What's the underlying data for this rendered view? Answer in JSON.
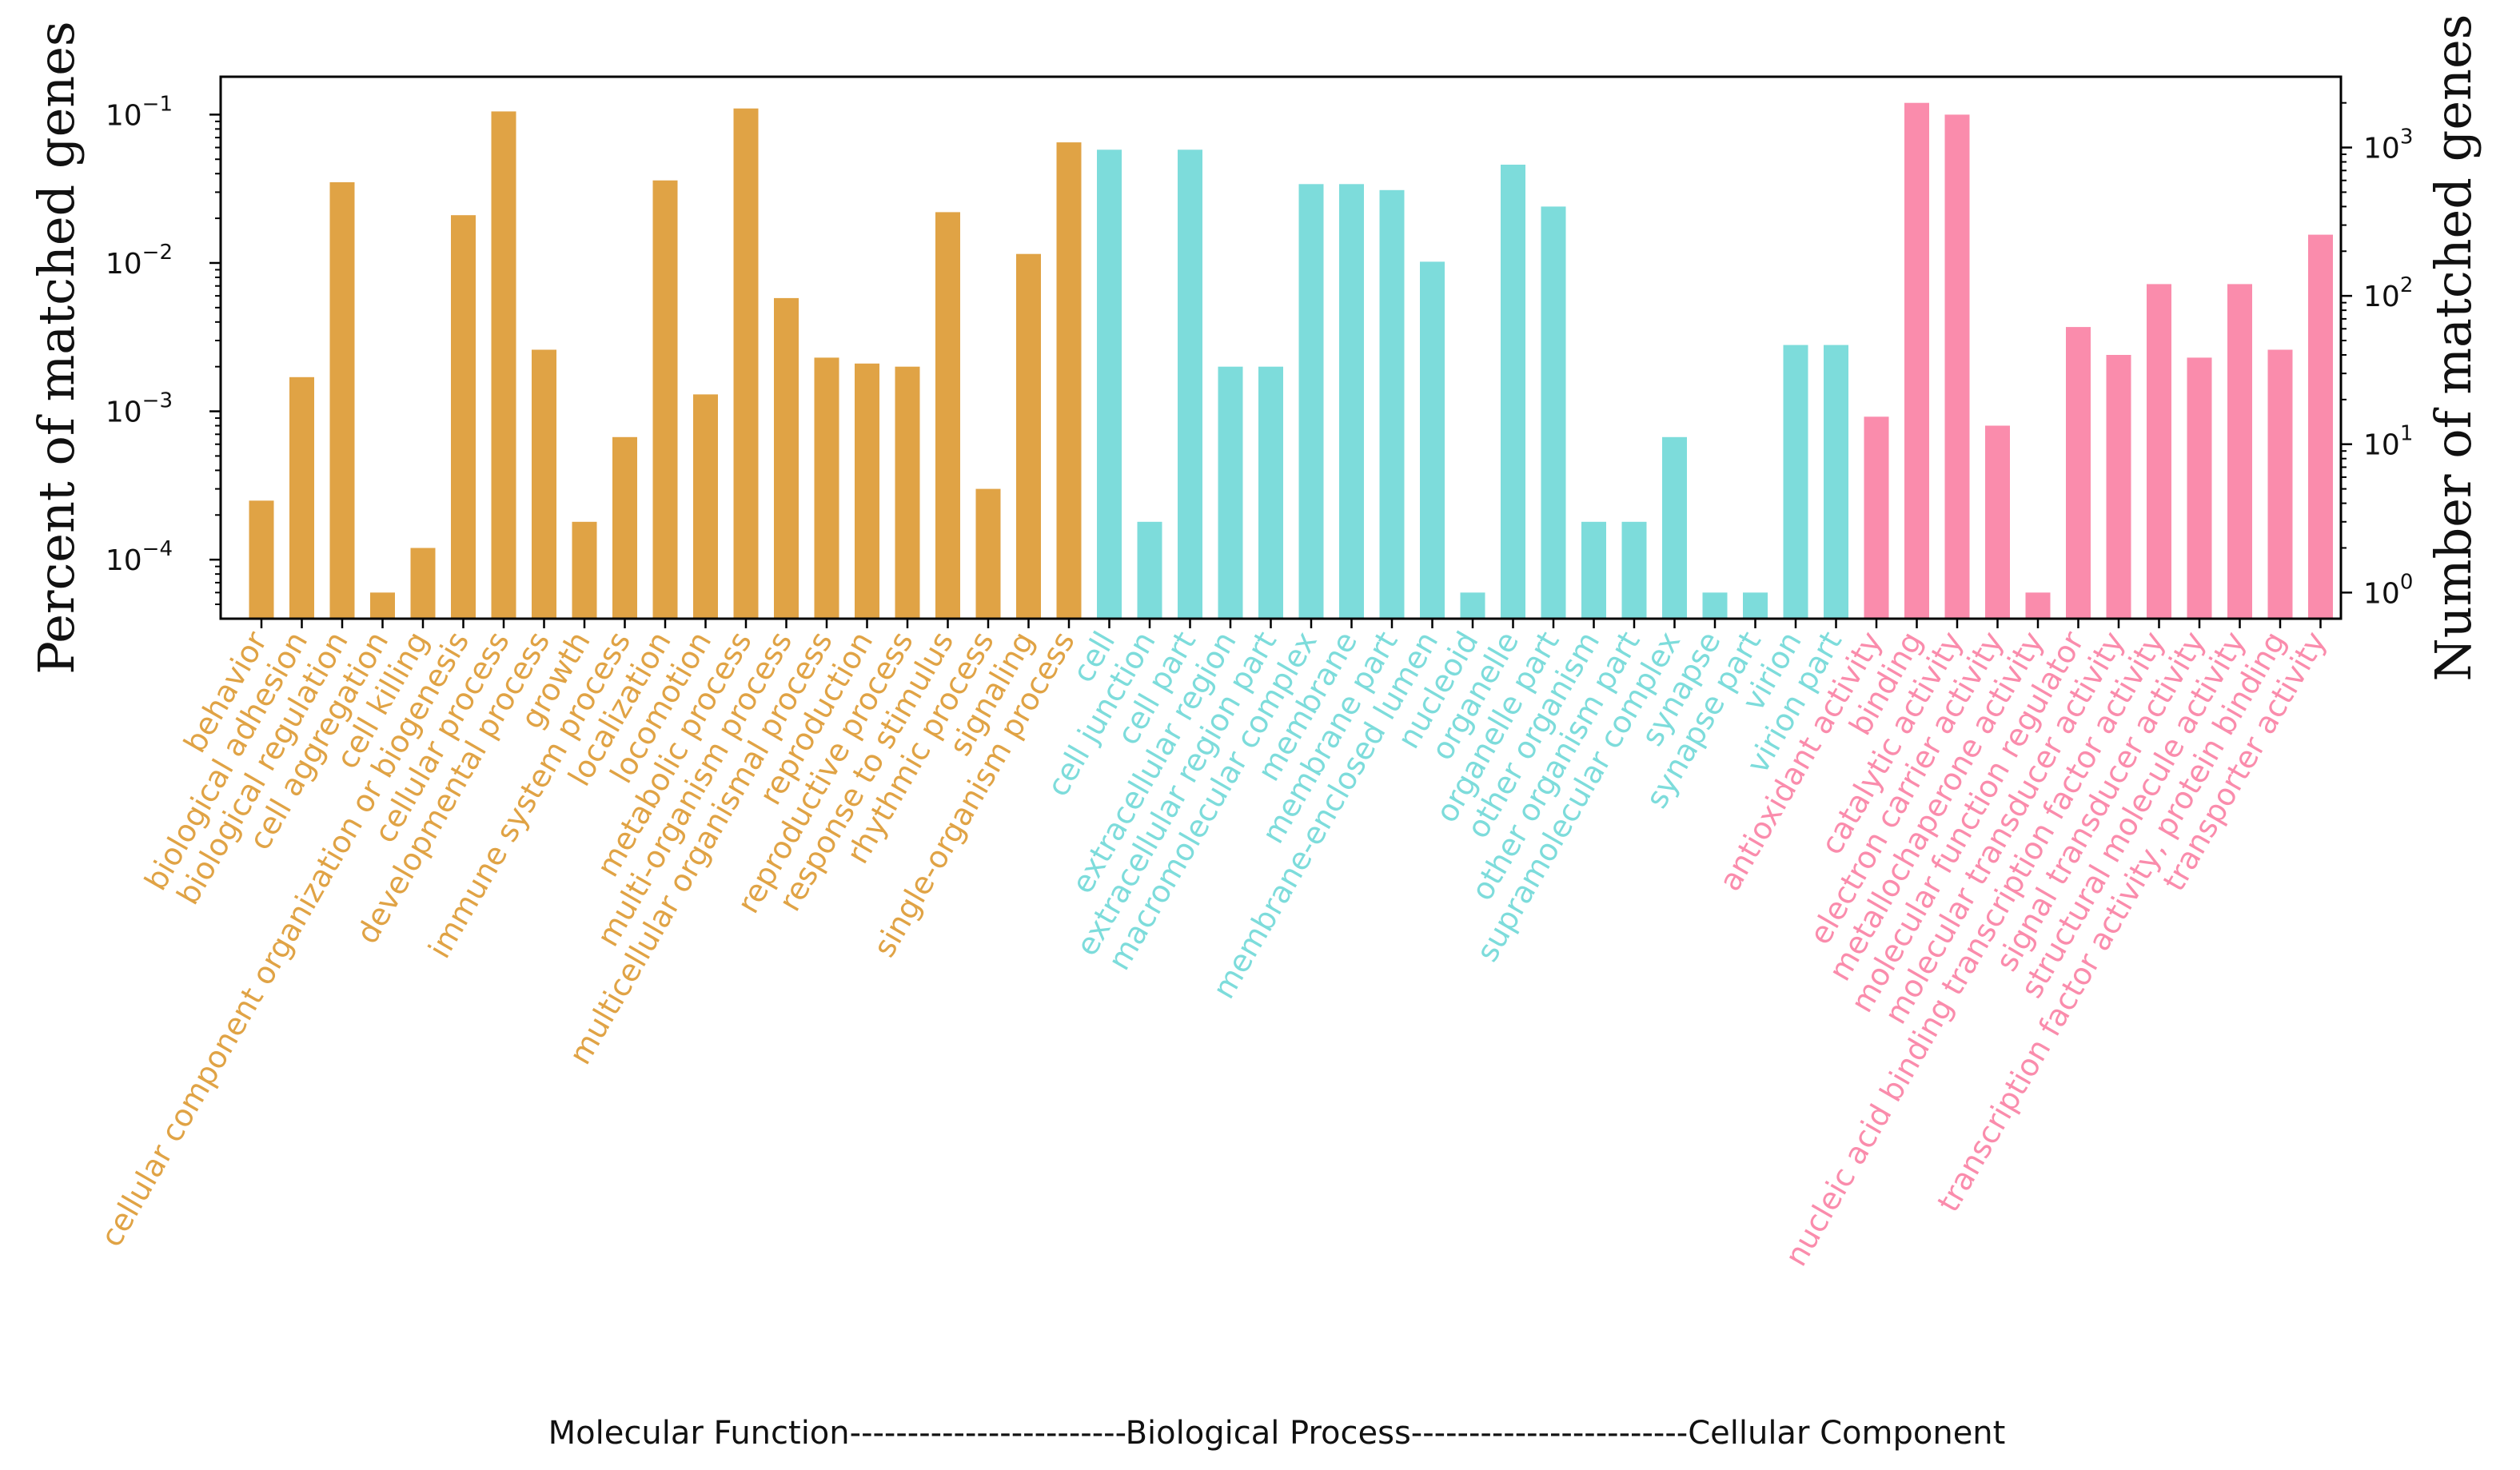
{
  "chart_data": {
    "type": "bar",
    "title": "",
    "ylabel_left": "Percent of matched genes",
    "ylabel_right": "Number of matched genes",
    "yscale": "log",
    "ylim_left": [
      4e-05,
      0.18
    ],
    "yticks_left": [
      {
        "value": 0.0001,
        "label": "10",
        "exp": "−4"
      },
      {
        "value": 0.001,
        "label": "10",
        "exp": "−3"
      },
      {
        "value": 0.01,
        "label": "10",
        "exp": "−2"
      },
      {
        "value": 0.1,
        "label": "10",
        "exp": "−1"
      }
    ],
    "yticks_right": [
      {
        "value": 1,
        "label": "10",
        "exp": "0"
      },
      {
        "value": 10,
        "label": "10",
        "exp": "1"
      },
      {
        "value": 100,
        "label": "10",
        "exp": "2"
      },
      {
        "value": 1000,
        "label": "10",
        "exp": "3"
      }
    ],
    "bottom_label": "Molecular Function------------------------Biological Process------------------------Cellular Component",
    "groups": [
      {
        "color": "#e0a345",
        "categories": [
          "behavior",
          "biological adhesion",
          "biological regulation",
          "cell aggregation",
          "cell killing",
          "cellular component organization or biogenesis",
          "cellular process",
          "developmental process",
          "growth",
          "immune system process",
          "localization",
          "locomotion",
          "metabolic process",
          "multi-organism process",
          "multicellular organismal process",
          "reproduction",
          "reproductive process",
          "response to stimulus",
          "rhythmic process",
          "signaling",
          "single-organism process"
        ],
        "values": [
          0.00025,
          0.0017,
          0.035,
          6e-05,
          0.00012,
          0.021,
          0.105,
          0.0026,
          0.00018,
          0.00067,
          0.036,
          0.0013,
          0.11,
          0.0058,
          0.0023,
          0.0021,
          0.002,
          0.022,
          0.0003,
          0.0115,
          0.065
        ]
      },
      {
        "color": "#7ddcdb",
        "categories": [
          "cell",
          "cell junction",
          "cell part",
          "extracellular region",
          "extracellular region part",
          "macromolecular complex",
          "membrane",
          "membrane part",
          "membrane-enclosed lumen",
          "nucleoid",
          "organelle",
          "organelle part",
          "other organism",
          "other organism part",
          "supramolecular complex",
          "synapse",
          "synapse part",
          "virion",
          "virion part"
        ],
        "values": [
          0.058,
          0.00018,
          0.058,
          0.002,
          0.002,
          0.034,
          0.034,
          0.031,
          0.0102,
          6e-05,
          0.046,
          0.024,
          0.00018,
          0.00018,
          0.00067,
          6e-05,
          6e-05,
          0.0028,
          0.0028
        ]
      },
      {
        "color": "#fa8cac",
        "categories": [
          "antioxidant activity",
          "binding",
          "catalytic activity",
          "electron carrier activity",
          "metallochaperone activity",
          "molecular function regulator",
          "molecular transducer activity",
          "nucleic acid binding transcription factor activity",
          "signal transducer activity",
          "structural molecule activity",
          "transcription factor activity, protein binding",
          "transporter activity"
        ],
        "values": [
          0.00092,
          0.12,
          0.1,
          0.0008,
          6e-05,
          0.0037,
          0.0024,
          0.0072,
          0.0023,
          0.0072,
          0.0026,
          0.0155
        ]
      }
    ]
  }
}
